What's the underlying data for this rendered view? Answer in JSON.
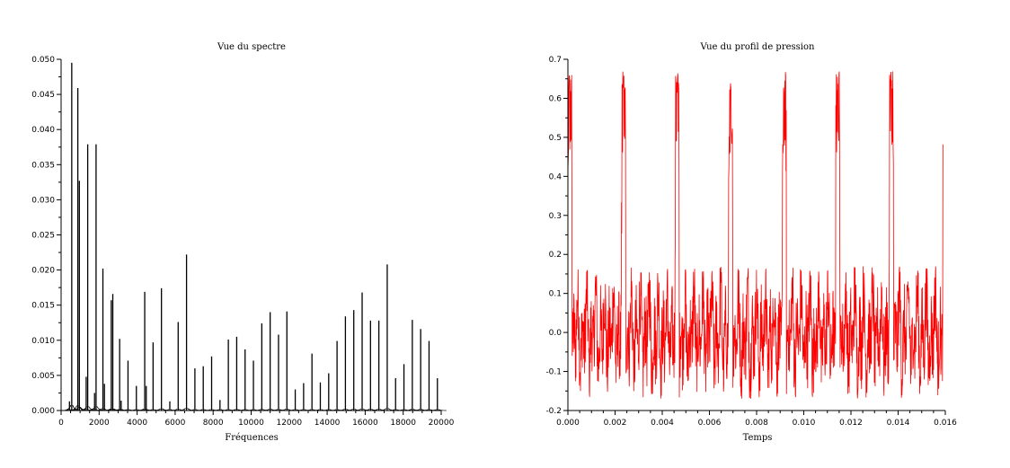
{
  "chart_data": [
    {
      "type": "line",
      "title": "Vue du spectre",
      "xlabel": "Fréquences",
      "ylabel": "",
      "xlim": [
        0,
        20000
      ],
      "ylim": [
        0,
        0.05
      ],
      "xticks": [
        0,
        2000,
        4000,
        6000,
        8000,
        10000,
        12000,
        14000,
        16000,
        18000,
        20000
      ],
      "xtick_labels": [
        "0",
        "2000",
        "4000",
        "6000",
        "8000",
        "10000",
        "12000",
        "14000",
        "16000",
        "18000",
        "20000"
      ],
      "yticks": [
        0,
        0.005,
        0.01,
        0.015,
        0.02,
        0.025,
        0.03,
        0.035,
        0.04,
        0.045,
        0.05
      ],
      "ytick_labels": [
        "0.000",
        "0.005",
        "0.010",
        "0.015",
        "0.020",
        "0.025",
        "0.030",
        "0.035",
        "0.040",
        "0.045",
        "0.050"
      ],
      "grid": false,
      "color": "#000000",
      "peaks": [
        {
          "x": 440,
          "y": 0.0013
        },
        {
          "x": 560,
          "y": 0.0495
        },
        {
          "x": 880,
          "y": 0.0459
        },
        {
          "x": 960,
          "y": 0.0327
        },
        {
          "x": 1320,
          "y": 0.0048
        },
        {
          "x": 1400,
          "y": 0.0379
        },
        {
          "x": 1760,
          "y": 0.0025
        },
        {
          "x": 1840,
          "y": 0.0379
        },
        {
          "x": 2200,
          "y": 0.0202
        },
        {
          "x": 2280,
          "y": 0.0038
        },
        {
          "x": 2640,
          "y": 0.0157
        },
        {
          "x": 2720,
          "y": 0.0166
        },
        {
          "x": 3080,
          "y": 0.0102
        },
        {
          "x": 3160,
          "y": 0.0014
        },
        {
          "x": 3520,
          "y": 0.0071
        },
        {
          "x": 3960,
          "y": 0.0035
        },
        {
          "x": 4400,
          "y": 0.0169
        },
        {
          "x": 4480,
          "y": 0.0035
        },
        {
          "x": 4840,
          "y": 0.0097
        },
        {
          "x": 5280,
          "y": 0.0174
        },
        {
          "x": 5720,
          "y": 0.0013
        },
        {
          "x": 6160,
          "y": 0.0126
        },
        {
          "x": 6600,
          "y": 0.0222
        },
        {
          "x": 7040,
          "y": 0.006
        },
        {
          "x": 7480,
          "y": 0.0063
        },
        {
          "x": 7920,
          "y": 0.0077
        },
        {
          "x": 8360,
          "y": 0.0015
        },
        {
          "x": 8800,
          "y": 0.0101
        },
        {
          "x": 9240,
          "y": 0.0105
        },
        {
          "x": 9680,
          "y": 0.0087
        },
        {
          "x": 10120,
          "y": 0.0071
        },
        {
          "x": 10560,
          "y": 0.0124
        },
        {
          "x": 11000,
          "y": 0.014
        },
        {
          "x": 11440,
          "y": 0.0108
        },
        {
          "x": 11880,
          "y": 0.0141
        },
        {
          "x": 12320,
          "y": 0.003
        },
        {
          "x": 12760,
          "y": 0.0039
        },
        {
          "x": 13200,
          "y": 0.0081
        },
        {
          "x": 13640,
          "y": 0.004
        },
        {
          "x": 14080,
          "y": 0.0053
        },
        {
          "x": 14520,
          "y": 0.0099
        },
        {
          "x": 14960,
          "y": 0.0134
        },
        {
          "x": 15400,
          "y": 0.0143
        },
        {
          "x": 15840,
          "y": 0.0168
        },
        {
          "x": 16280,
          "y": 0.0128
        },
        {
          "x": 16720,
          "y": 0.0128
        },
        {
          "x": 17160,
          "y": 0.0208
        },
        {
          "x": 17600,
          "y": 0.0046
        },
        {
          "x": 18040,
          "y": 0.0066
        },
        {
          "x": 18480,
          "y": 0.0129
        },
        {
          "x": 18920,
          "y": 0.0116
        },
        {
          "x": 19360,
          "y": 0.0099
        },
        {
          "x": 19800,
          "y": 0.0046
        }
      ]
    },
    {
      "type": "line",
      "title": "Vue du profil de pression",
      "xlabel": "Temps",
      "ylabel": "",
      "xlim": [
        0,
        0.016
      ],
      "ylim": [
        -0.2,
        0.7
      ],
      "xticks": [
        0,
        0.002,
        0.004,
        0.006,
        0.008,
        0.01,
        0.012,
        0.014,
        0.016
      ],
      "xtick_labels": [
        "0.000",
        "0.002",
        "0.004",
        "0.006",
        "0.008",
        "0.010",
        "0.012",
        "0.014",
        "0.016"
      ],
      "yticks": [
        -0.2,
        -0.1,
        0.0,
        0.1,
        0.2,
        0.3,
        0.4,
        0.5,
        0.6,
        0.7
      ],
      "ytick_labels": [
        "-0.2",
        "-0.1",
        "0.0",
        "0.1",
        "0.2",
        "0.3",
        "0.4",
        "0.5",
        "0.6",
        "0.7"
      ],
      "grid": false,
      "color": "#ff0000",
      "period": 0.00227,
      "pulse_width": 0.00018,
      "pulse_peak": 0.67,
      "pulse_base": 0.45,
      "noise_min": -0.17,
      "noise_max": 0.17
    }
  ]
}
